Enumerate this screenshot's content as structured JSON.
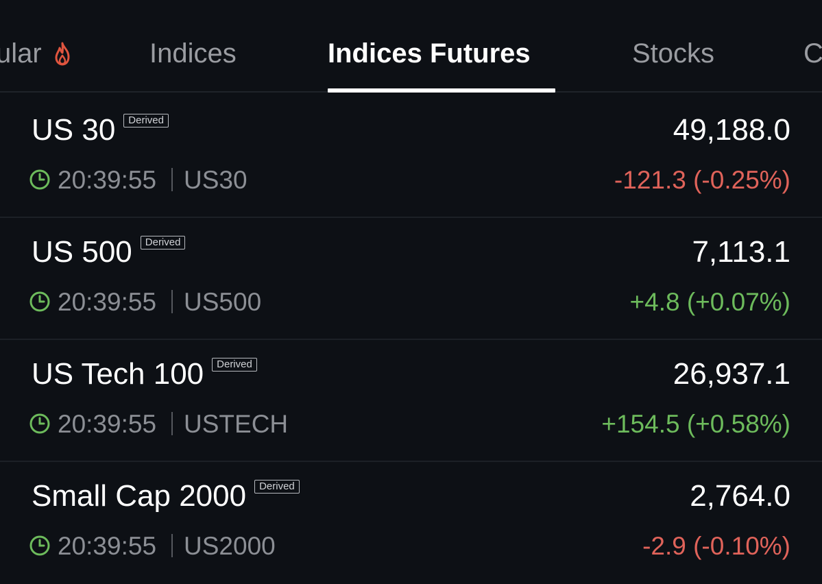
{
  "tabs": [
    {
      "label": "ular",
      "active": false,
      "icon": "fire-icon"
    },
    {
      "label": "Indices",
      "active": false
    },
    {
      "label": "Indices Futures",
      "active": true
    },
    {
      "label": "Stocks",
      "active": false
    },
    {
      "label": "C",
      "active": false
    }
  ],
  "colors": {
    "background": "#0d1015",
    "positive": "#6dbb5c",
    "negative": "#e0635a",
    "fire": "#e0553f",
    "clock": "#6dbb5c"
  },
  "rows": [
    {
      "name": "US 30",
      "badge": "Derived",
      "time": "20:39:55",
      "symbol": "US30",
      "price": "49,188.0",
      "change": "-121.3 (-0.25%)",
      "direction": "negative"
    },
    {
      "name": "US 500",
      "badge": "Derived",
      "time": "20:39:55",
      "symbol": "US500",
      "price": "7,113.1",
      "change": "+4.8 (+0.07%)",
      "direction": "positive"
    },
    {
      "name": "US Tech 100",
      "badge": "Derived",
      "time": "20:39:55",
      "symbol": "USTECH",
      "price": "26,937.1",
      "change": "+154.5 (+0.58%)",
      "direction": "positive"
    },
    {
      "name": "Small Cap 2000",
      "badge": "Derived",
      "time": "20:39:55",
      "symbol": "US2000",
      "price": "2,764.0",
      "change": "-2.9 (-0.10%)",
      "direction": "negative"
    }
  ]
}
